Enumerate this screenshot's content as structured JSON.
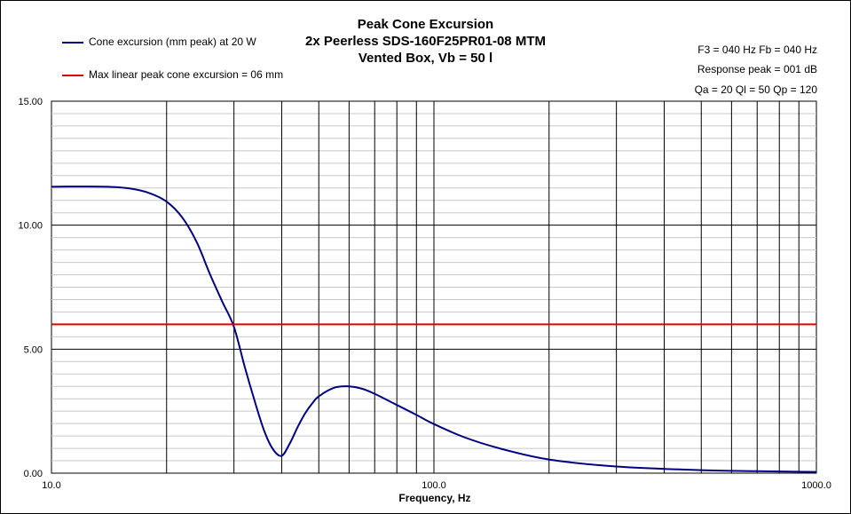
{
  "chart_data": {
    "type": "line",
    "title_lines": [
      "Peak Cone Excursion",
      "2x Peerless SDS-160F25PR01-08 MTM",
      "Vented Box, Vb = 50 l"
    ],
    "xlabel": "Frequency, Hz",
    "ylabel": "",
    "x_scale": "log",
    "xlim": [
      10,
      1000
    ],
    "ylim": [
      0,
      15
    ],
    "x_tick_labels": [
      "10.0",
      "100.0",
      "1000.0"
    ],
    "y_tick_labels": [
      "0.00",
      "5.00",
      "10.00",
      "15.00"
    ],
    "grid": true,
    "legend_position": "top-left",
    "annotations": [
      "F3 = 040  Hz  Fb = 040  Hz",
      "Response peak = 001  dB",
      "Qa = 20   Ql = 50   Qp = 120"
    ],
    "series": [
      {
        "name": "Cone excursion (mm peak) at 20 W",
        "color": "#000080",
        "x": [
          10,
          12,
          14,
          16,
          18,
          20,
          22,
          24,
          26,
          28,
          30,
          32,
          34,
          36,
          38,
          40,
          42,
          44,
          46,
          48,
          50,
          55,
          60,
          65,
          70,
          80,
          90,
          100,
          120,
          150,
          200,
          300,
          500,
          700,
          1000
        ],
        "y": [
          11.55,
          11.56,
          11.55,
          11.48,
          11.3,
          10.95,
          10.3,
          9.3,
          8.0,
          6.9,
          5.9,
          4.3,
          2.9,
          1.7,
          0.95,
          0.7,
          1.2,
          1.85,
          2.4,
          2.8,
          3.1,
          3.45,
          3.5,
          3.4,
          3.2,
          2.75,
          2.35,
          1.98,
          1.45,
          0.98,
          0.55,
          0.27,
          0.12,
          0.08,
          0.05
        ]
      },
      {
        "name": "Max linear peak cone excursion = 06 mm",
        "color": "#e00000",
        "x": [
          10,
          1000
        ],
        "y": [
          6,
          6
        ]
      }
    ]
  },
  "colors": {
    "grid": "#000000",
    "axis": "#000000"
  }
}
